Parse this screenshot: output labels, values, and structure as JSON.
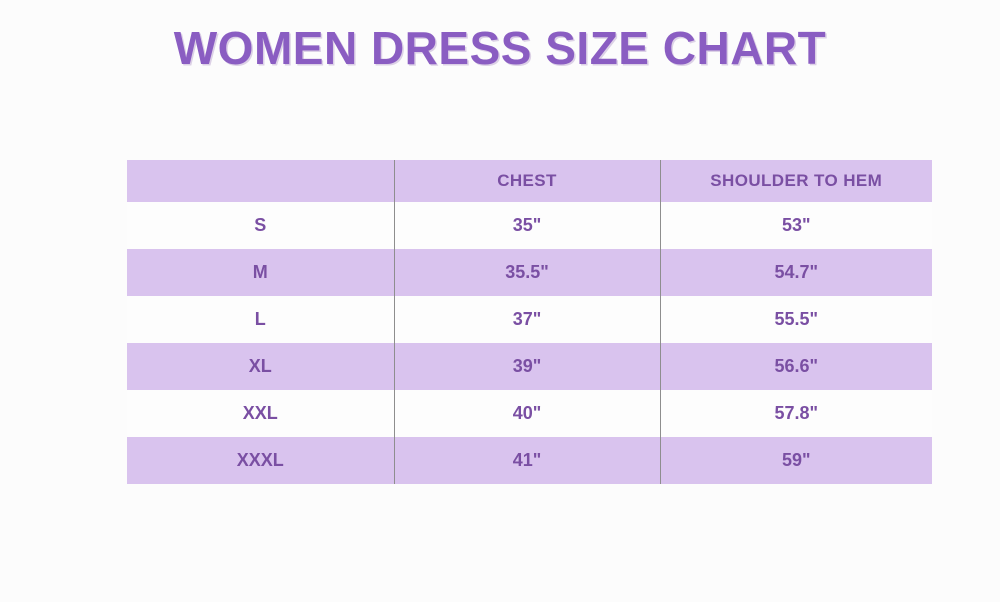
{
  "chart_data": {
    "type": "table",
    "title": "WOMEN DRESS SIZE CHART",
    "columns": [
      "",
      "CHEST",
      "SHOULDER TO HEM"
    ],
    "rows": [
      [
        "S",
        "35\"",
        "53\""
      ],
      [
        "M",
        "35.5\"",
        "54.7\""
      ],
      [
        "L",
        "37\"",
        "55.5\""
      ],
      [
        "XL",
        "39\"",
        "56.6\""
      ],
      [
        "XXL",
        "40\"",
        "57.8\""
      ],
      [
        "XXXL",
        "41\"",
        "59\""
      ]
    ],
    "layout": {
      "header_background": "lavender",
      "body_stripes": "alternating white and lavender starting with white",
      "column_dividers": "vertical gray lines between the three columns"
    }
  },
  "colors": {
    "title_purple": "#8a5dc2",
    "text_purple": "#7a4fa3",
    "row_lavender": "#d9c3ee",
    "row_white": "#fdfdfd",
    "divider_gray": "#8e8e8e",
    "background": "#fcfcfc"
  }
}
